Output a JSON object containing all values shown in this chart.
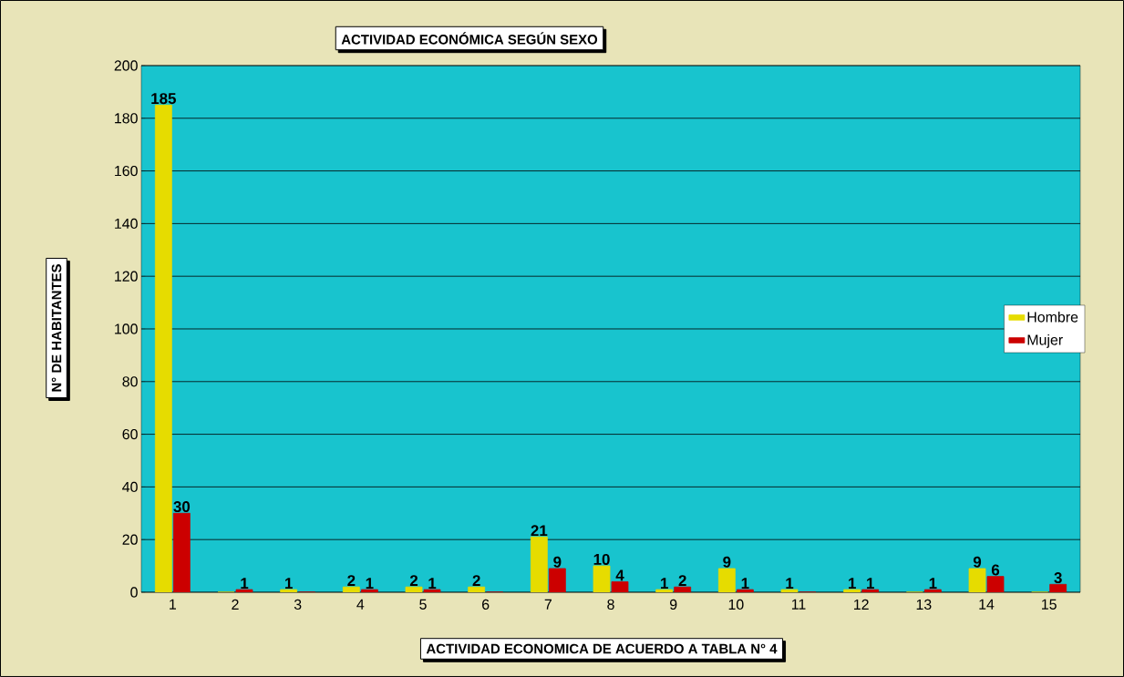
{
  "chart_data": {
    "type": "bar",
    "title": "ACTIVIDAD ECONÓMICA SEGÚN SEXO",
    "xlabel": "ACTIVIDAD ECONOMICA DE ACUERDO A TABLA N° 4",
    "ylabel": "N° DE HABITANTES",
    "categories": [
      "1",
      "2",
      "3",
      "4",
      "5",
      "6",
      "7",
      "8",
      "9",
      "10",
      "11",
      "12",
      "13",
      "14",
      "15"
    ],
    "series": [
      {
        "name": "Hombre",
        "color": "#e6dc00",
        "values": [
          185,
          0,
          1,
          2,
          2,
          2,
          21,
          10,
          1,
          9,
          1,
          1,
          0,
          9,
          0
        ],
        "value_labels": [
          "185",
          null,
          "1",
          "2",
          "2",
          "2",
          "21",
          "10",
          "1",
          "9",
          "1",
          "1",
          null,
          "9",
          null
        ]
      },
      {
        "name": "Mujer",
        "color": "#cc0000",
        "values": [
          30,
          1,
          0,
          1,
          1,
          0,
          9,
          4,
          2,
          1,
          0,
          1,
          1,
          6,
          3
        ],
        "value_labels": [
          "30",
          "1",
          null,
          "1",
          "1",
          null,
          "9",
          "4",
          "2",
          "1",
          null,
          "1",
          "1",
          "6",
          "3"
        ]
      }
    ],
    "ylim": [
      0,
      200
    ],
    "yticks": [
      0,
      20,
      40,
      60,
      80,
      100,
      120,
      140,
      160,
      180,
      200
    ],
    "grid": "y",
    "legend": "right"
  }
}
